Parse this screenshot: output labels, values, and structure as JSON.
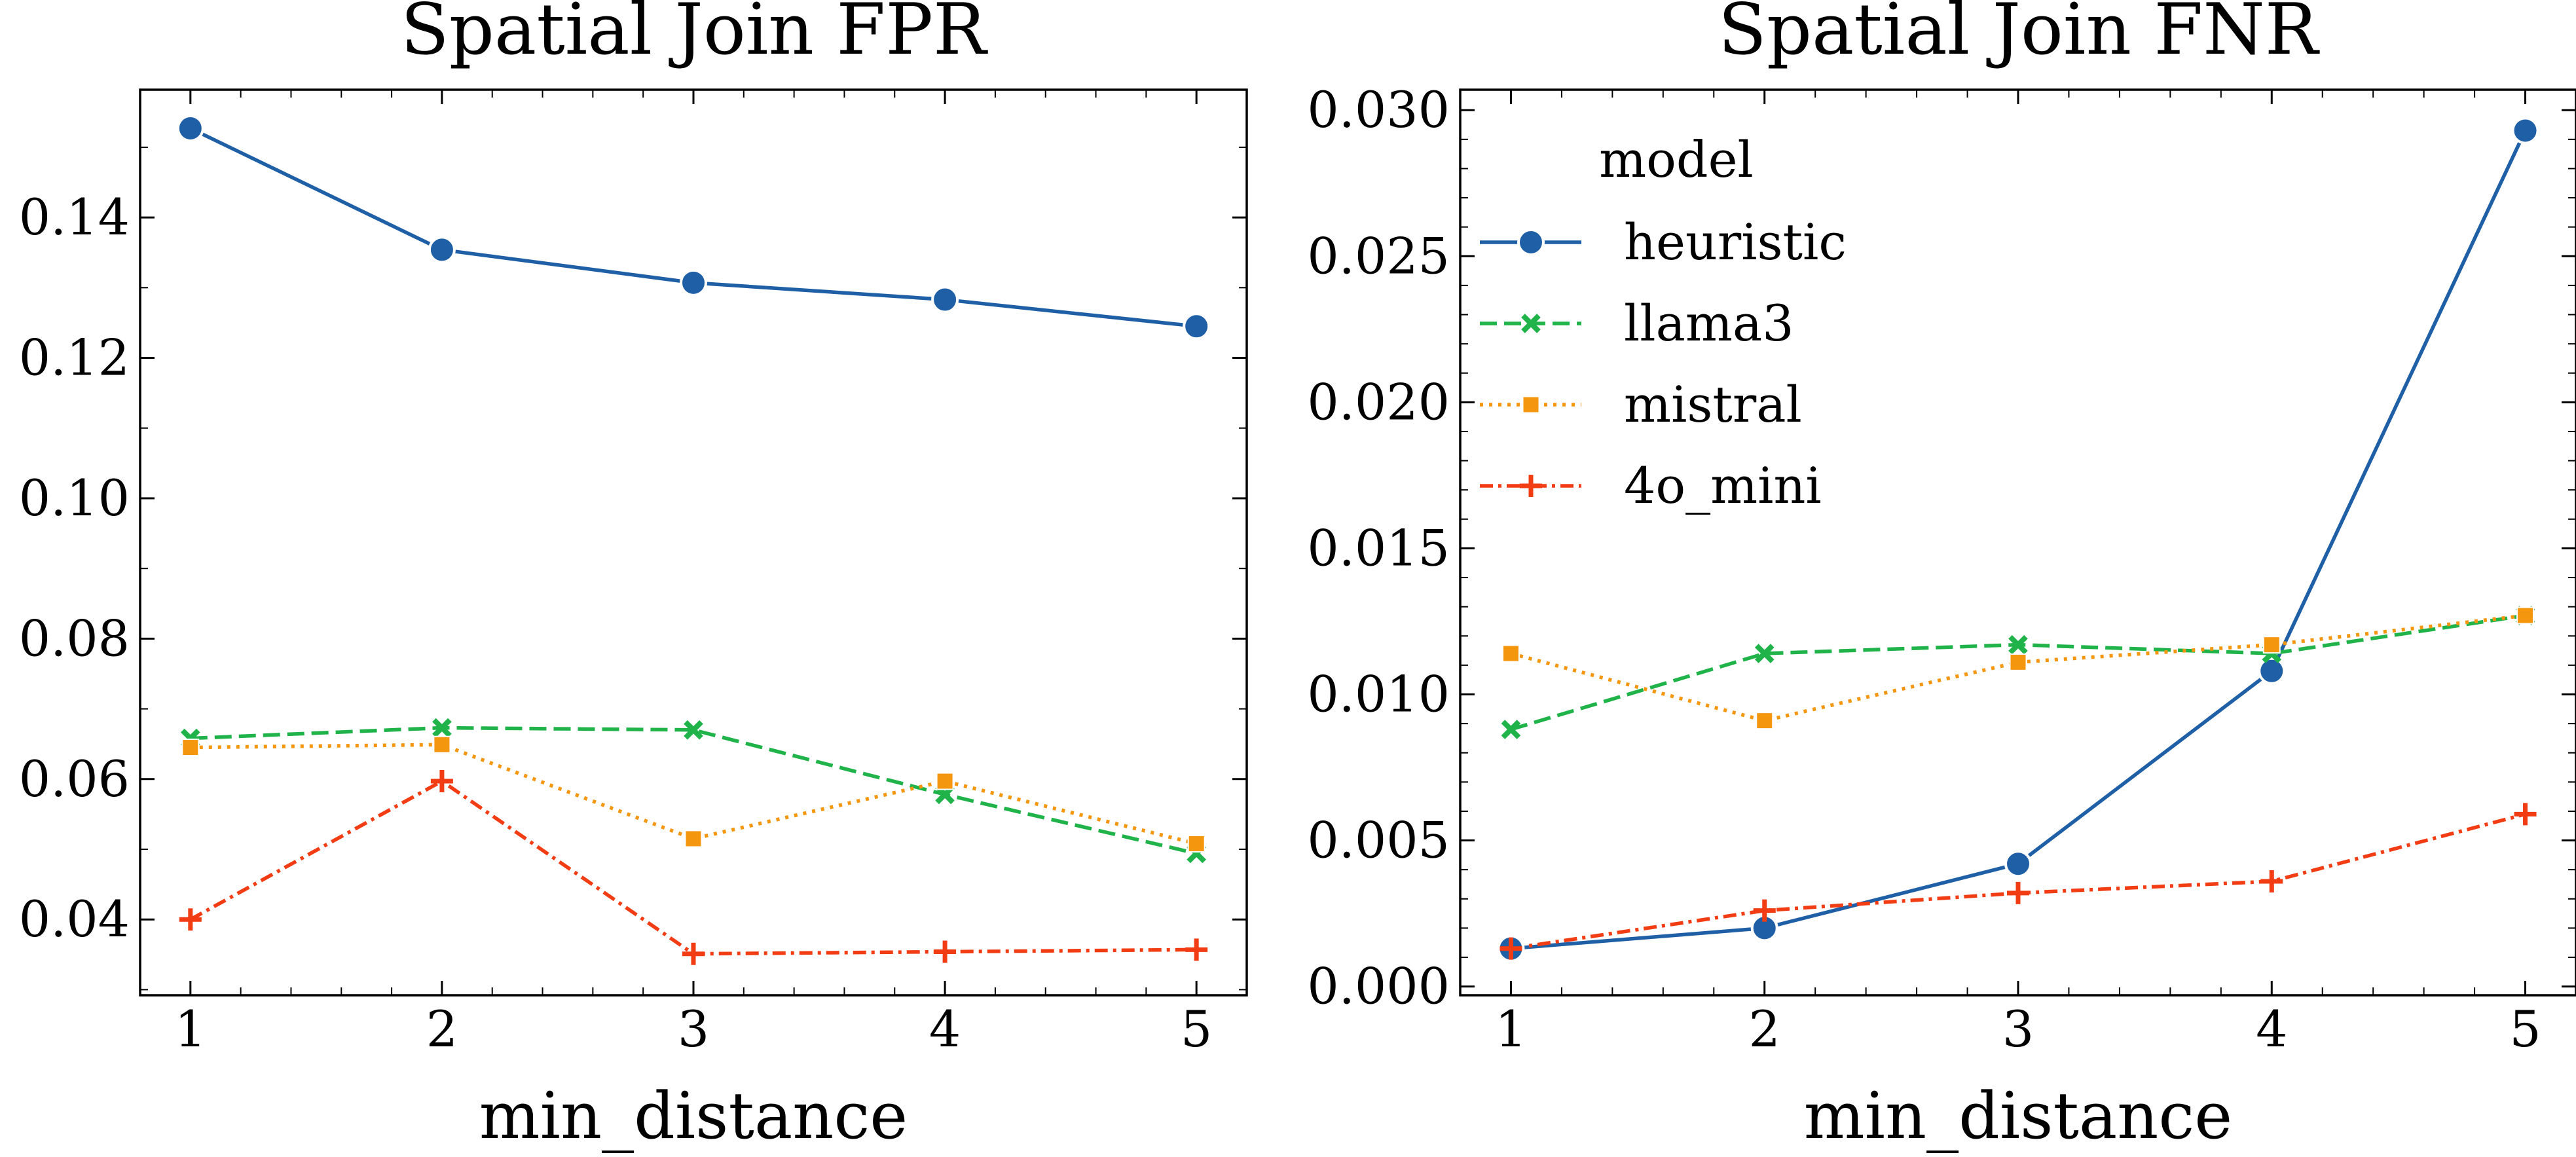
{
  "chart_data": [
    {
      "type": "line",
      "title": "Spatial Join FPR",
      "xlabel": "min_distance",
      "ylabel": "",
      "x": [
        1,
        2,
        3,
        4,
        5
      ],
      "xticks": [
        "1",
        "2",
        "3",
        "4",
        "5"
      ],
      "xlim": [
        0.8,
        5.2
      ],
      "yticks": [
        "0.04",
        "0.06",
        "0.08",
        "0.10",
        "0.12",
        "0.14"
      ],
      "ylim": [
        0.0292,
        0.1582
      ],
      "grid": false,
      "series": [
        {
          "name": "heuristic",
          "values": [
            0.1527,
            0.1354,
            0.1307,
            0.1283,
            0.1245
          ],
          "color": "#1f5fa6",
          "dash": "solid",
          "marker": "circle"
        },
        {
          "name": "llama3",
          "values": [
            0.0658,
            0.0673,
            0.067,
            0.0578,
            0.0494
          ],
          "color": "#1fb34a",
          "dash": "dashed",
          "marker": "x"
        },
        {
          "name": "mistral",
          "values": [
            0.0645,
            0.0649,
            0.0515,
            0.0597,
            0.0508
          ],
          "color": "#f5960f",
          "dash": "dotted",
          "marker": "square"
        },
        {
          "name": "4o_mini",
          "values": [
            0.04,
            0.0597,
            0.0351,
            0.0354,
            0.0357
          ],
          "color": "#f23c14",
          "dash": "dashdot",
          "marker": "plus"
        }
      ]
    },
    {
      "type": "line",
      "title": "Spatial Join FNR",
      "xlabel": "min_distance",
      "ylabel": "",
      "x": [
        1,
        2,
        3,
        4,
        5
      ],
      "xticks": [
        "1",
        "2",
        "3",
        "4",
        "5"
      ],
      "xlim": [
        0.8,
        5.2
      ],
      "yticks": [
        "0.000",
        "0.005",
        "0.010",
        "0.015",
        "0.020",
        "0.025",
        "0.030"
      ],
      "ylim": [
        -0.0003,
        0.0307
      ],
      "grid": false,
      "legend": {
        "title": "model",
        "placement": "upper-left"
      },
      "series": [
        {
          "name": "heuristic",
          "values": [
            0.0013,
            0.002,
            0.0042,
            0.0108,
            0.0293
          ],
          "color": "#1f5fa6",
          "dash": "solid",
          "marker": "circle"
        },
        {
          "name": "llama3",
          "values": [
            0.0088,
            0.0114,
            0.0117,
            0.0114,
            0.0127
          ],
          "color": "#1fb34a",
          "dash": "dashed",
          "marker": "x"
        },
        {
          "name": "mistral",
          "values": [
            0.0114,
            0.0091,
            0.0111,
            0.0117,
            0.0127
          ],
          "color": "#f5960f",
          "dash": "dotted",
          "marker": "square"
        },
        {
          "name": "4o_mini",
          "values": [
            0.0013,
            0.0026,
            0.0032,
            0.0036,
            0.0059
          ],
          "color": "#f23c14",
          "dash": "dashdot",
          "marker": "plus"
        }
      ]
    }
  ]
}
